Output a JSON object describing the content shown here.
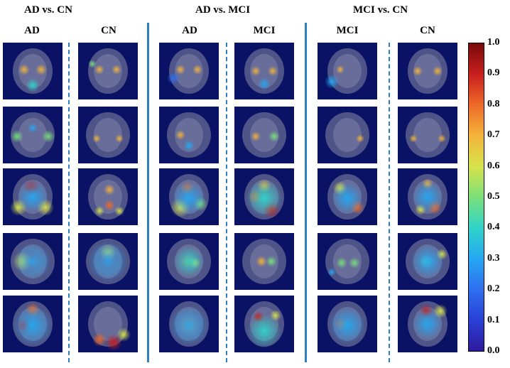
{
  "groups": [
    {
      "title": "AD vs. CN",
      "left_label": "AD",
      "right_label": "CN"
    },
    {
      "title": "AD vs. MCI",
      "left_label": "AD",
      "right_label": "MCI"
    },
    {
      "title": "MCI vs. CN",
      "left_label": "MCI",
      "right_label": "CN"
    }
  ],
  "colorbar": {
    "ticks": [
      "0.0",
      "0.1",
      "0.2",
      "0.3",
      "0.4",
      "0.5",
      "0.6",
      "0.7",
      "0.8",
      "0.9",
      "1.0"
    ],
    "range": [
      0,
      1
    ],
    "colormap": "jet",
    "colors": [
      "#2c1a9c",
      "#2a3fd6",
      "#2f6ff0",
      "#25a8f2",
      "#2fd3c9",
      "#7be07a",
      "#d8e34a",
      "#f4b43a",
      "#ee6a28",
      "#c81e1e",
      "#7a0a0a"
    ]
  },
  "heatmap_rows": 5,
  "separator_color": "#2e7fc1",
  "background_color": "#0a1265"
}
